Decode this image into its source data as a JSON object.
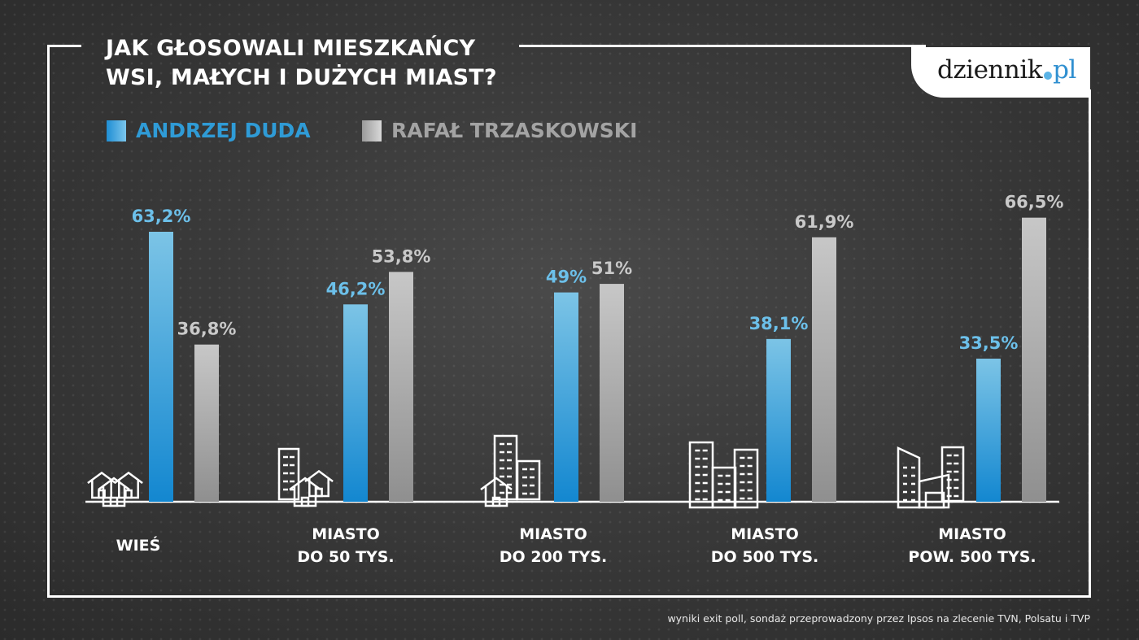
{
  "title_line1": "JAK GŁOSOWALI MIESZKAŃCY",
  "title_line2": "WSI, MAŁYCH I DUŻYCH MIAST?",
  "logo": {
    "main": "dziennik",
    "suffix": "pl"
  },
  "footer": "wyniki exit poll, sondaż przeprowadzony przez Ipsos na zlecenie TVN, Polsatu i TVP",
  "colors": {
    "duda": "#2f9bd6",
    "duda_label": "#6cc0ea",
    "trzaskowski": "#b9b9b9",
    "trzaskowski_label": "#c9c9c9"
  },
  "chart_data": {
    "type": "bar",
    "title": "JAK GŁOSOWALI MIESZKAŃCY WSI, MAŁYCH I DUŻYCH MIAST?",
    "categories": [
      [
        "WIEŚ"
      ],
      [
        "MIASTO",
        "DO 50 TYS."
      ],
      [
        "MIASTO",
        "DO 200 TYS."
      ],
      [
        "MIASTO",
        "DO 500 TYS."
      ],
      [
        "MIASTO",
        "POW. 500 TYS."
      ]
    ],
    "series": [
      {
        "name": "ANDRZEJ DUDA",
        "values": [
          63.2,
          46.2,
          49,
          38.1,
          33.5
        ],
        "labels": [
          "63,2%",
          "46,2%",
          "49%",
          "38,1%",
          "33,5%"
        ]
      },
      {
        "name": "RAFAŁ TRZASKOWSKI",
        "values": [
          36.8,
          53.8,
          51,
          61.9,
          66.5
        ],
        "labels": [
          "36,8%",
          "53,8%",
          "51%",
          "61,9%",
          "66,5%"
        ]
      }
    ],
    "ylim": [
      0,
      70
    ],
    "icons": [
      "houses-icon",
      "building-houses-icon",
      "towers-house-icon",
      "blocks-icon",
      "skyscrapers-icon"
    ],
    "legend": "top-left",
    "grid": false
  }
}
